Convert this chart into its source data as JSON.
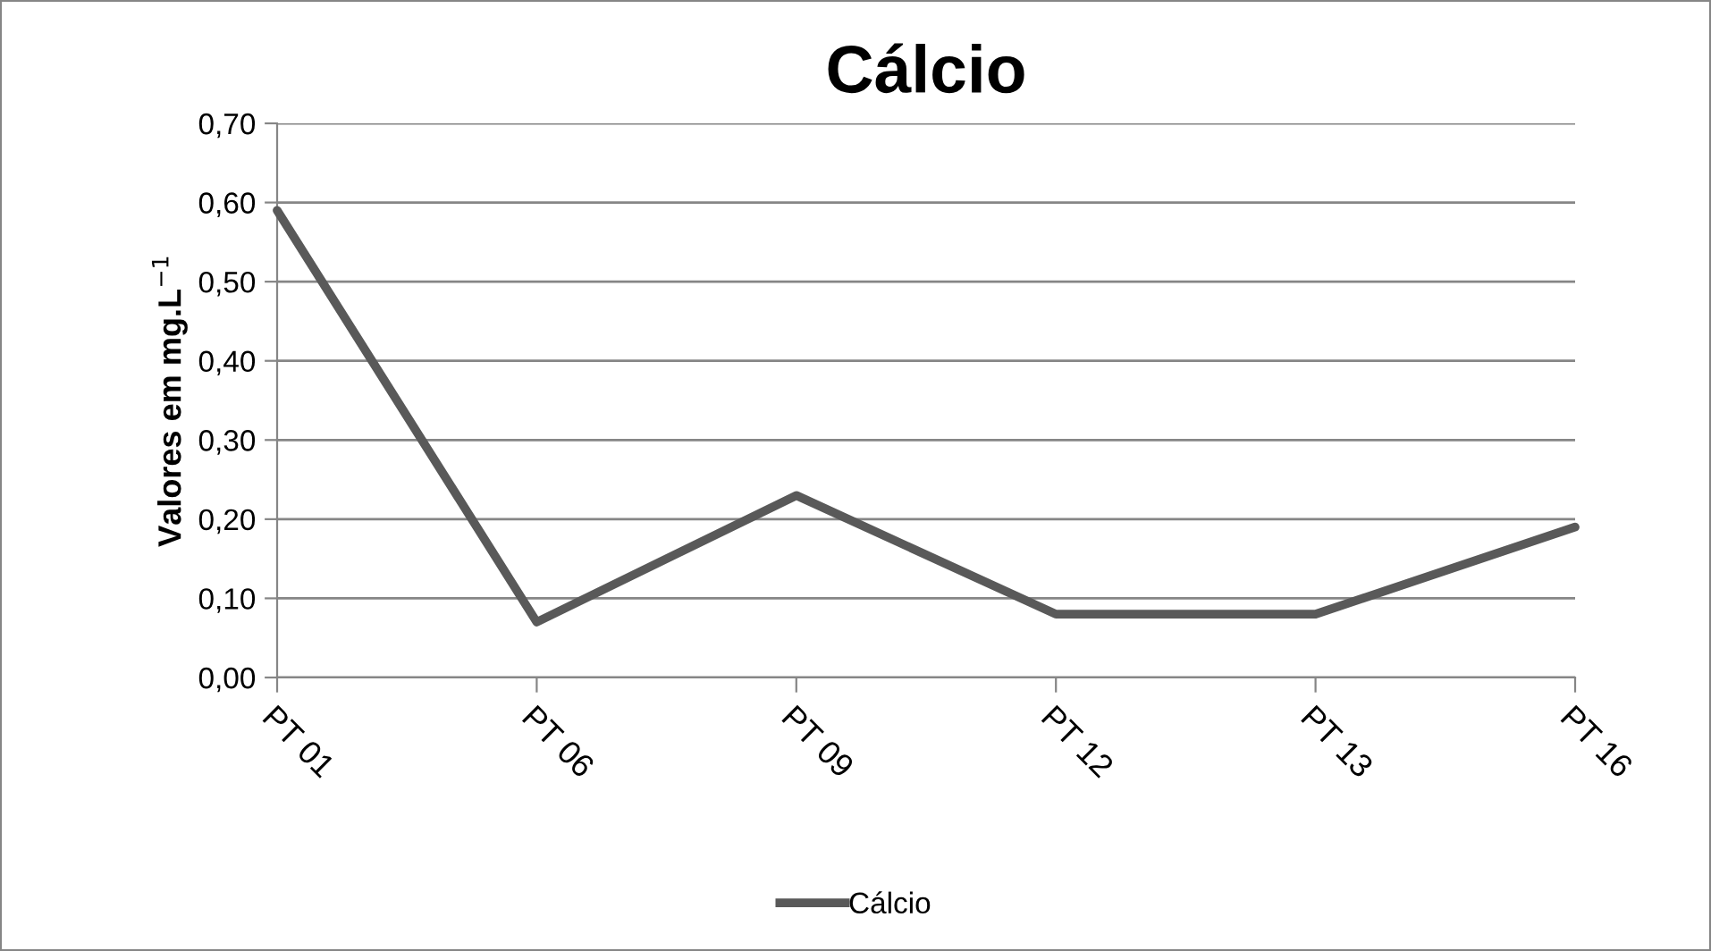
{
  "chart_data": {
    "type": "line",
    "title": "Cálcio",
    "ylabel": "Valores em mg.L$^{−1}$",
    "categories": [
      "PT 01",
      "PT 06",
      "PT 09",
      "PT 12",
      "PT 13",
      "PT 16"
    ],
    "series": [
      {
        "name": "Cálcio",
        "color": "#595959",
        "values": [
          0.59,
          0.07,
          0.23,
          0.08,
          0.08,
          0.19
        ]
      }
    ],
    "ylim": [
      0,
      0.7
    ],
    "yticks": [
      {
        "value": 0,
        "label": "0,00"
      },
      {
        "value": 0.1,
        "label": "0,10"
      },
      {
        "value": 0.2,
        "label": "0,20"
      },
      {
        "value": 0.3,
        "label": "0,30"
      },
      {
        "value": 0.4,
        "label": "0,40"
      },
      {
        "value": 0.5,
        "label": "0,50"
      },
      {
        "value": 0.6,
        "label": "0,60"
      },
      {
        "value": 0.7,
        "label": "0,70"
      }
    ],
    "grid": "y",
    "legend": "bottom",
    "marker": "none",
    "line_style": "solid"
  }
}
